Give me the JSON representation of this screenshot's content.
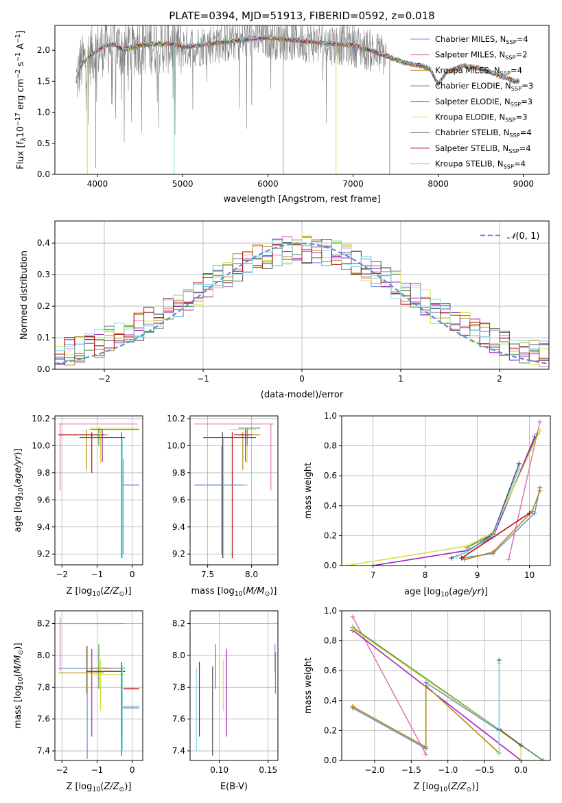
{
  "figure": {
    "title": "PLATE=0394, MJD=51913, FIBERID=0592, z=0.018"
  },
  "colors": {
    "Chabrier MILES": "#6a8fd8",
    "Salpeter MILES": "#e07ab8",
    "Kroupa MILES": "#b8860b",
    "Chabrier ELODIE": "#4a8f4a",
    "Salpeter ELODIE": "#a020c8",
    "Kroupa ELODIE": "#d8e040",
    "Chabrier STELIB": "#505050",
    "Salpeter STELIB": "#b01010",
    "Kroupa STELIB": "#80d8e0",
    "data": "#808080",
    "orange": "#e07b39",
    "normal": "#5b8dd9"
  },
  "chart_data": [
    {
      "id": "spectrum",
      "type": "line",
      "title": "PLATE=0394, MJD=51913, FIBERID=0592, z=0.018",
      "xlabel": "wavelength [Angstrom, rest frame]",
      "ylabel": "Flux [fλ10⁻¹⁷ erg cm⁻² s⁻¹ A⁻¹]",
      "xlim": [
        3500,
        9300
      ],
      "ylim": [
        0,
        2.4
      ],
      "xticks": [
        4000,
        5000,
        6000,
        7000,
        8000,
        9000
      ],
      "yticks": [
        0.0,
        0.5,
        1.0,
        1.5,
        2.0
      ],
      "legend_position": "top-right",
      "legend": [
        "Chabrier MILES, N_SSP=4",
        "Salpeter MILES, N_SSP=2",
        "Kroupa MILES, N_SSP=4",
        "Chabrier ELODIE, N_SSP=3",
        "Salpeter ELODIE, N_SSP=3",
        "Kroupa ELODIE, N_SSP=3",
        "Chabrier STELIB, N_SSP=4",
        "Salpeter STELIB, N_SSP=4",
        "Kroupa STELIB, N_SSP=4"
      ],
      "model_continuum": {
        "x": [
          3750,
          3800,
          3900,
          4000,
          4100,
          4200,
          4300,
          4400,
          4500,
          4700,
          4900,
          5000,
          5200,
          5400,
          5600,
          5800,
          6000,
          6200,
          6400,
          6600,
          6800,
          7000,
          7200,
          7400,
          7600,
          7800,
          7900,
          8000,
          8100,
          8300,
          8500,
          8700,
          8900
        ],
        "y": [
          1.5,
          1.75,
          1.9,
          2.0,
          2.08,
          2.1,
          2.0,
          2.05,
          2.08,
          2.1,
          2.1,
          2.05,
          2.08,
          2.12,
          2.15,
          2.18,
          2.2,
          2.18,
          2.15,
          2.12,
          2.1,
          2.08,
          2.0,
          1.9,
          1.8,
          1.75,
          1.7,
          1.45,
          1.65,
          1.75,
          1.7,
          1.6,
          1.5
        ]
      }
    },
    {
      "id": "histogram",
      "type": "histogram",
      "xlabel": "(data-model)/error",
      "ylabel": "Normed distribution",
      "xlim": [
        -2.5,
        2.5
      ],
      "ylim": [
        0,
        0.47
      ],
      "xticks": [
        -2,
        -1,
        0,
        1,
        2
      ],
      "yticks": [
        0.0,
        0.1,
        0.2,
        0.3,
        0.4
      ],
      "legend": [
        "N(0,1)"
      ],
      "legend_position": "top-right",
      "bin_width": 0.1
    },
    {
      "id": "age_vs_Z",
      "type": "errorbar",
      "xlabel": "Z [log10(Z/Z⊙)]",
      "ylabel": "age  [log10(age/yr)]",
      "xlim": [
        -2.2,
        0.3
      ],
      "ylim": [
        9.12,
        10.22
      ],
      "xticks": [
        -2,
        -1,
        0
      ],
      "yticks": [
        9.2,
        9.4,
        9.6,
        9.8,
        10.0,
        10.2
      ]
    },
    {
      "id": "age_vs_mass",
      "type": "errorbar",
      "xlabel": "mass [log10(M/M⊙)]",
      "ylabel": "",
      "xlim": [
        7.3,
        8.3
      ],
      "ylim": [
        9.12,
        10.22
      ],
      "xticks": [
        7.5,
        8.0
      ],
      "yticks": [
        9.2,
        9.4,
        9.6,
        9.8,
        10.0,
        10.2
      ]
    },
    {
      "id": "weight_vs_age",
      "type": "line",
      "xlabel": "age  [log10(age/yr)]",
      "ylabel": "mass weight",
      "xlim": [
        6.4,
        10.4
      ],
      "ylim": [
        0,
        1.0
      ],
      "xticks": [
        7,
        8,
        9,
        10
      ],
      "yticks": [
        0.0,
        0.2,
        0.4,
        0.6,
        0.8,
        1.0
      ],
      "series": [
        {
          "model": "Chabrier MILES",
          "x": [
            8.7,
            9.3,
            10.1,
            10.2
          ],
          "y": [
            0.05,
            0.08,
            0.35,
            0.52
          ]
        },
        {
          "model": "Salpeter MILES",
          "x": [
            9.6,
            10.2
          ],
          "y": [
            0.04,
            0.96
          ]
        },
        {
          "model": "Kroupa MILES",
          "x": [
            8.75,
            9.3,
            10.05,
            10.2
          ],
          "y": [
            0.04,
            0.09,
            0.36,
            0.5
          ]
        },
        {
          "model": "Chabrier ELODIE",
          "x": [
            8.8,
            9.3,
            10.15
          ],
          "y": [
            0.12,
            0.21,
            0.88
          ]
        },
        {
          "model": "Salpeter ELODIE",
          "x": [
            7.0,
            8.8,
            9.3,
            10.1
          ],
          "y": [
            0.0,
            0.1,
            0.19,
            0.86
          ]
        },
        {
          "model": "Kroupa ELODIE",
          "x": [
            6.5,
            8.8,
            9.3,
            10.2
          ],
          "y": [
            0.0,
            0.13,
            0.22,
            0.9
          ]
        },
        {
          "model": "Chabrier STELIB",
          "x": [
            8.5,
            8.8,
            9.3,
            9.8
          ],
          "y": [
            0.05,
            0.09,
            0.21,
            0.68
          ]
        },
        {
          "model": "Salpeter STELIB",
          "x": [
            8.7,
            10.0
          ],
          "y": [
            0.05,
            0.35
          ]
        },
        {
          "model": "Kroupa STELIB",
          "x": [
            8.6,
            8.8,
            9.3,
            9.8
          ],
          "y": [
            0.06,
            0.09,
            0.2,
            0.65
          ]
        }
      ]
    },
    {
      "id": "mass_vs_Z",
      "type": "errorbar",
      "xlabel": "Z [log10(Z/Z⊙)]",
      "ylabel": "mass [log10(M/M⊙)]",
      "xlim": [
        -2.2,
        0.3
      ],
      "ylim": [
        7.34,
        8.28
      ],
      "xticks": [
        -2,
        -1,
        0
      ],
      "yticks": [
        7.4,
        7.6,
        7.8,
        8.0,
        8.2
      ]
    },
    {
      "id": "mass_vs_EBV",
      "type": "errorbar",
      "xlabel": "E(B-V)",
      "ylabel": "",
      "xlim": [
        0.07,
        0.16
      ],
      "ylim": [
        7.34,
        8.28
      ],
      "xticks": [
        0.1,
        0.15
      ],
      "yticks": [
        7.4,
        7.6,
        7.8,
        8.0,
        8.2
      ]
    },
    {
      "id": "weight_vs_Z",
      "type": "line",
      "xlabel": "Z [log10(Z/Z⊙)]",
      "ylabel": "mass weight",
      "xlim": [
        -2.45,
        0.4
      ],
      "ylim": [
        0,
        1.0
      ],
      "xticks": [
        -2.0,
        -1.5,
        -1.0,
        -0.5,
        0.0
      ],
      "yticks": [
        0.0,
        0.2,
        0.4,
        0.6,
        0.8,
        1.0
      ],
      "series": [
        {
          "model": "Salpeter MILES",
          "x": [
            -2.3,
            -1.3
          ],
          "y": [
            0.96,
            0.04
          ]
        },
        {
          "model": "Salpeter ELODIE",
          "x": [
            -2.3,
            0.0
          ],
          "y": [
            0.87,
            0.0
          ]
        },
        {
          "model": "Chabrier ELODIE",
          "x": [
            -2.3,
            0.3
          ],
          "y": [
            0.89,
            0.0
          ]
        },
        {
          "model": "Kroupa ELODIE",
          "x": [
            -2.3,
            0.0,
            0.0
          ],
          "y": [
            0.88,
            0.1,
            0.0
          ]
        },
        {
          "model": "Chabrier MILES",
          "x": [
            -2.3,
            -1.3,
            -1.3,
            -0.3,
            -0.3
          ],
          "y": [
            0.35,
            0.08,
            0.52,
            0.2,
            0.05
          ]
        },
        {
          "model": "Kroupa MILES",
          "x": [
            -2.3,
            -1.3,
            -1.3,
            -0.3,
            -0.3
          ],
          "y": [
            0.36,
            0.09,
            0.5,
            0.05,
            0.05
          ]
        },
        {
          "model": "Chabrier STELIB",
          "x": [
            -0.3,
            -0.3,
            0.0
          ],
          "y": [
            0.67,
            0.21,
            0.1
          ]
        },
        {
          "model": "Kroupa STELIB",
          "x": [
            -0.3,
            -0.3
          ],
          "y": [
            0.65,
            0.05
          ]
        }
      ]
    }
  ]
}
